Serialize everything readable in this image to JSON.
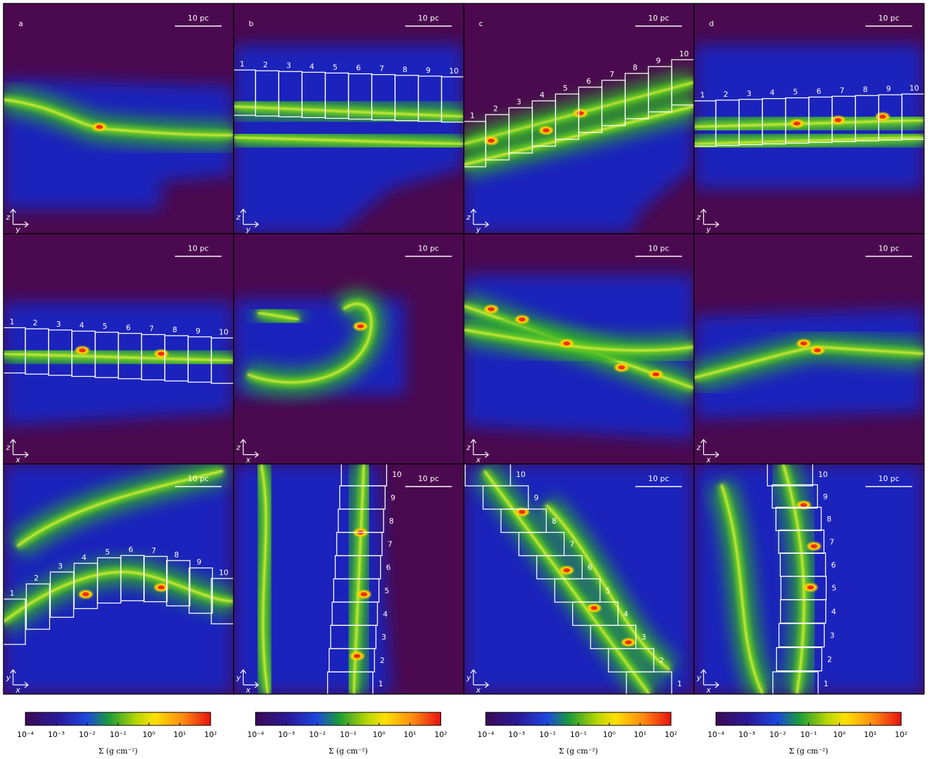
{
  "panel_labels": [
    "a",
    "b",
    "c",
    "d"
  ],
  "scale_bar_label": "10 pc",
  "axis_indicators": [
    {
      "up": "z",
      "right": "y"
    },
    {
      "up": "z",
      "right": "x"
    },
    {
      "up": "y",
      "right": "x"
    }
  ],
  "box_numbers": [
    "1",
    "2",
    "3",
    "4",
    "5",
    "6",
    "7",
    "8",
    "9",
    "10"
  ],
  "colorbar": {
    "ticks": [
      "10⁻⁴",
      "10⁻³",
      "10⁻²",
      "10⁻¹",
      "10⁰",
      "10¹",
      "10²"
    ],
    "label": "Σ  (g cm⁻²)"
  }
}
